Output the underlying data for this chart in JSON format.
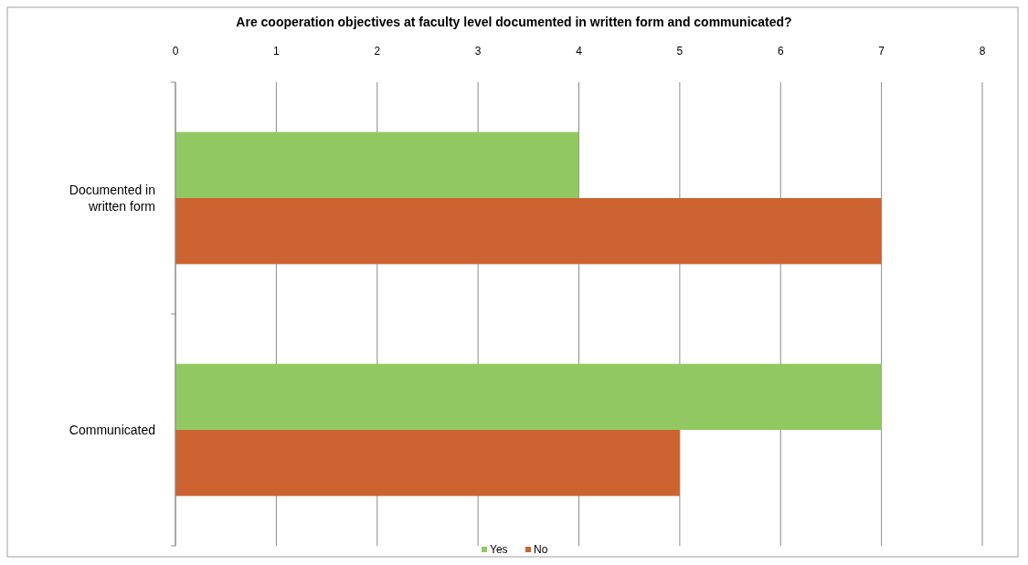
{
  "chart_data": {
    "type": "bar",
    "orientation": "horizontal",
    "title": "Are cooperation objectives at faculty level documented in written form and communicated?",
    "categories": [
      "Documented in written form",
      "Communicated"
    ],
    "series": [
      {
        "name": "Yes",
        "color": "#92c862",
        "values": [
          4,
          7
        ]
      },
      {
        "name": "No",
        "color": "#cc6331",
        "values": [
          7,
          5
        ]
      }
    ],
    "xlim": [
      0,
      8
    ],
    "xticks": [
      0,
      1,
      2,
      3,
      4,
      5,
      6,
      7,
      8
    ],
    "grid": "x",
    "legend": "bottom"
  }
}
